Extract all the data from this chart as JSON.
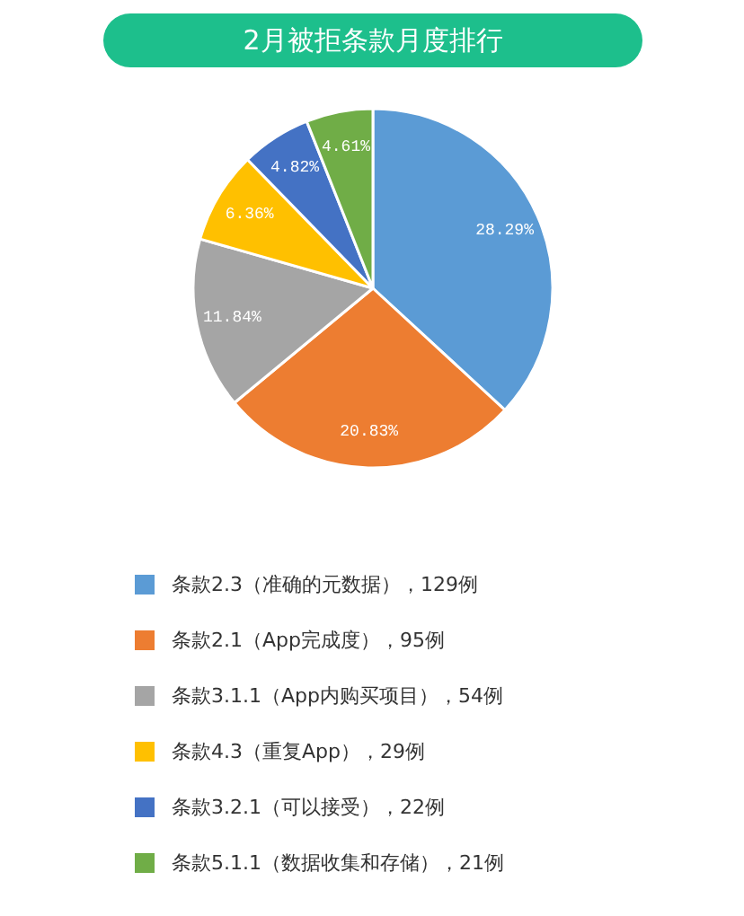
{
  "chart_data": {
    "type": "pie",
    "title": "2月被拒条款月度排行",
    "categories": [
      "条款2.3（准确的元数据），129例",
      "条款2.1（App完成度），95例",
      "条款3.1.1（App内购买项目），54例",
      "条款4.3（重复App），29例",
      "条款3.2.1（可以接受），22例",
      "条款5.1.1（数据收集和存储），21例"
    ],
    "values": [
      28.29,
      20.83,
      11.84,
      6.36,
      4.82,
      4.61
    ],
    "colors": [
      "#5b9bd5",
      "#ed7d31",
      "#a5a5a5",
      "#ffc000",
      "#4472c4",
      "#70ad47"
    ],
    "value_labels": [
      "28.29%",
      "20.83%",
      "11.84%",
      "6.36%",
      "4.82%",
      "4.61%"
    ],
    "legend": "bottom"
  }
}
